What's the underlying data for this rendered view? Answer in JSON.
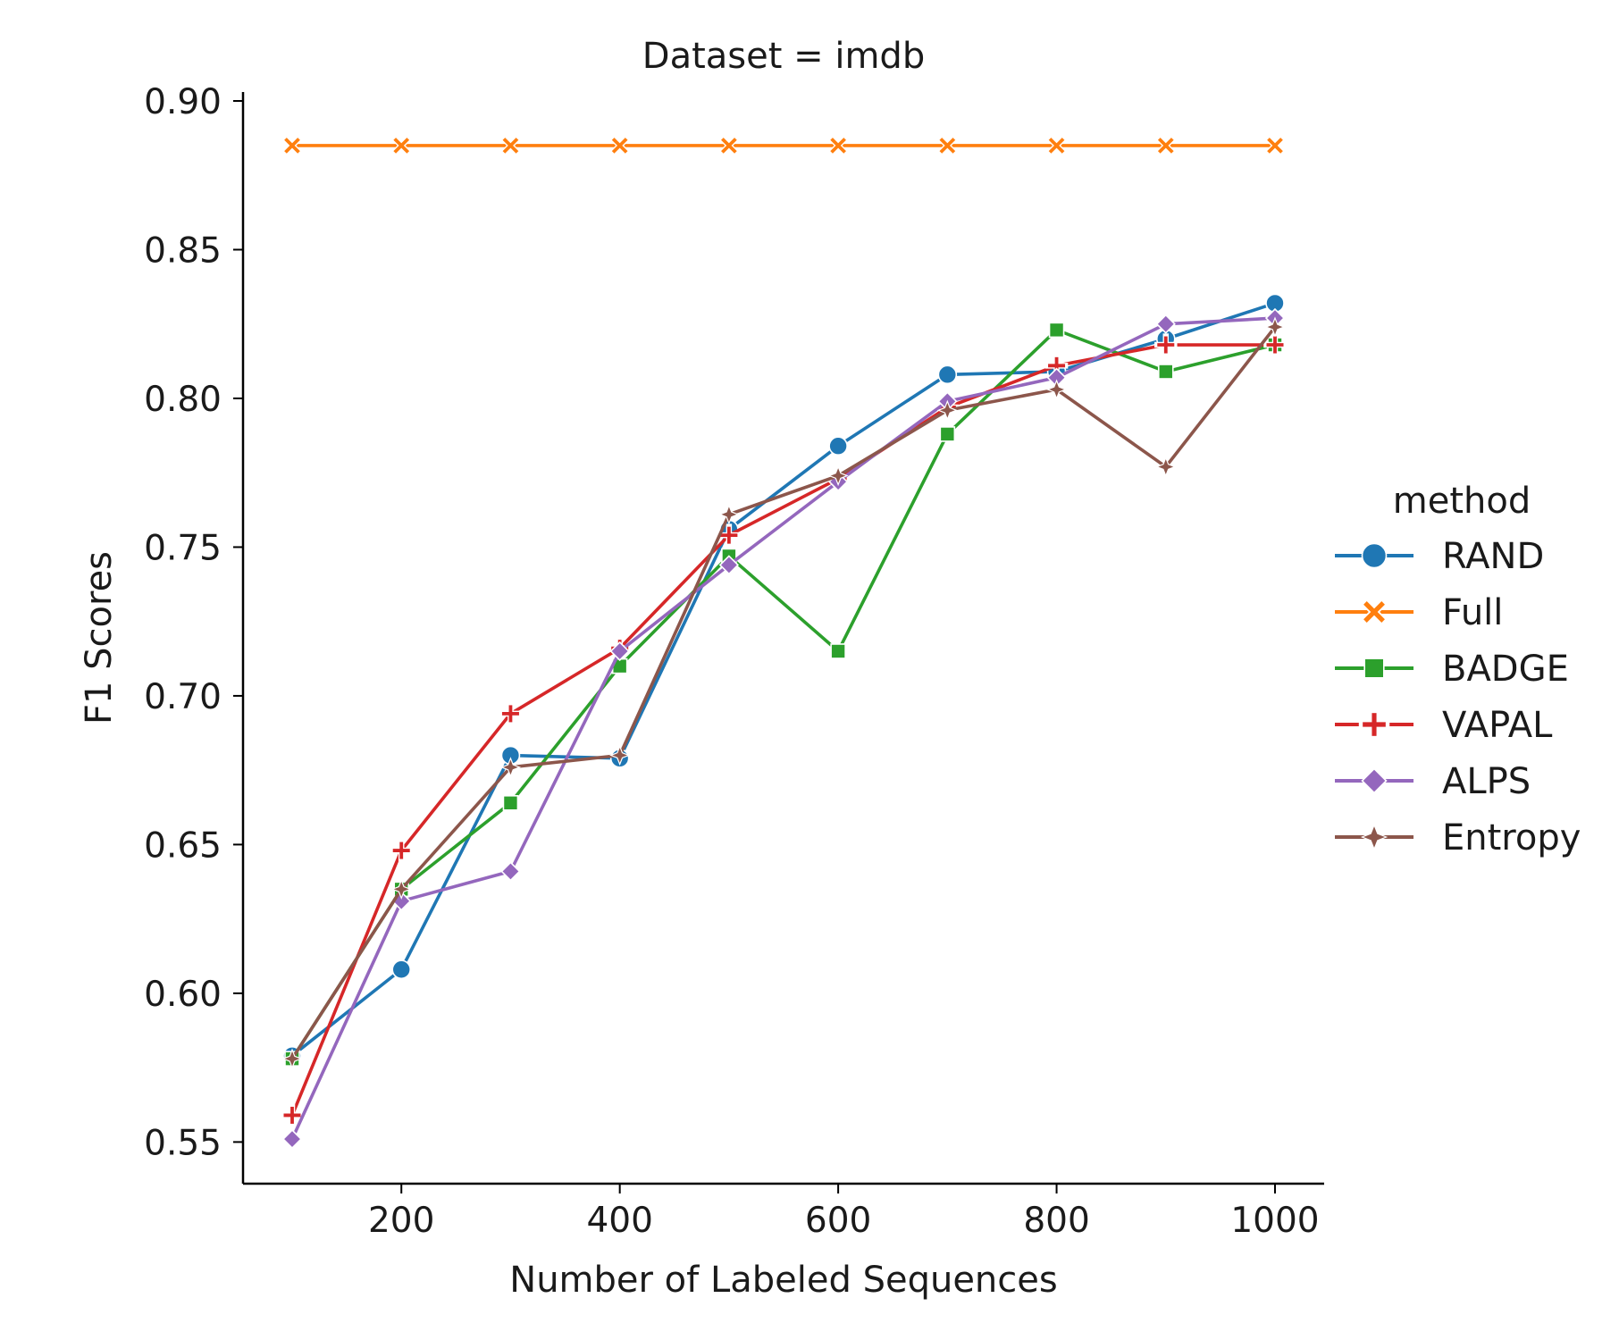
{
  "chart_data": {
    "type": "line",
    "title": "Dataset = imdb",
    "xlabel": "Number of Labeled Sequences",
    "ylabel": "F1 Scores",
    "x": [
      100,
      200,
      300,
      400,
      500,
      600,
      700,
      800,
      900,
      1000
    ],
    "xlim": [
      55,
      1045
    ],
    "ylim": [
      0.536,
      0.903
    ],
    "xticks": [
      200,
      400,
      600,
      800,
      1000
    ],
    "yticks": [
      0.55,
      0.6,
      0.65,
      0.7,
      0.75,
      0.8,
      0.85,
      0.9
    ],
    "xtick_labels": [
      "200",
      "400",
      "600",
      "800",
      "1000"
    ],
    "ytick_labels": [
      "0.55",
      "0.60",
      "0.65",
      "0.70",
      "0.75",
      "0.80",
      "0.85",
      "0.90"
    ],
    "grid": false,
    "legend": {
      "title": "method",
      "placement": "right"
    },
    "series": [
      {
        "name": "RAND",
        "color": "#1f77b4",
        "marker": "circle",
        "values": [
          0.579,
          0.608,
          0.68,
          0.679,
          0.756,
          0.784,
          0.808,
          0.809,
          0.82,
          0.832
        ]
      },
      {
        "name": "Full",
        "color": "#ff7f0e",
        "marker": "x",
        "values": [
          0.885,
          0.885,
          0.885,
          0.885,
          0.885,
          0.885,
          0.885,
          0.885,
          0.885,
          0.885
        ]
      },
      {
        "name": "BADGE",
        "color": "#2ca02c",
        "marker": "square",
        "values": [
          0.578,
          0.635,
          0.664,
          0.71,
          0.747,
          0.715,
          0.788,
          0.823,
          0.809,
          0.818
        ]
      },
      {
        "name": "VAPAL",
        "color": "#d62728",
        "marker": "plus",
        "values": [
          0.559,
          0.648,
          0.694,
          0.716,
          0.754,
          0.773,
          0.797,
          0.811,
          0.818,
          0.818
        ]
      },
      {
        "name": "ALPS",
        "color": "#9467bd",
        "marker": "diamond",
        "values": [
          0.551,
          0.631,
          0.641,
          0.715,
          0.744,
          0.772,
          0.799,
          0.807,
          0.825,
          0.827
        ]
      },
      {
        "name": "Entropy",
        "color": "#8c564b",
        "marker": "star",
        "values": [
          0.578,
          0.635,
          0.676,
          0.68,
          0.761,
          0.774,
          0.796,
          0.803,
          0.777,
          0.824
        ]
      }
    ]
  }
}
